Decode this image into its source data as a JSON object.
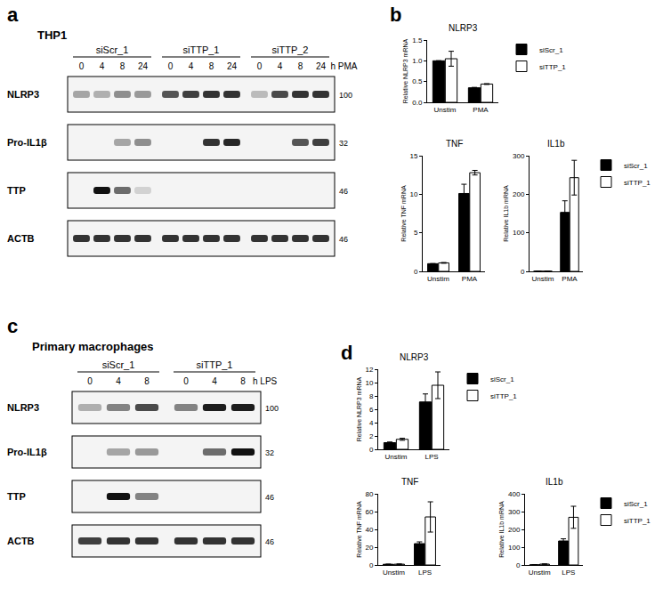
{
  "panel_labels": [
    "a",
    "b",
    "c",
    "d"
  ],
  "blots": [
    {
      "title": "THP1",
      "groups": [
        "siScr_1",
        "siTTP_1",
        "siTTP_2"
      ],
      "lanes": [
        "0",
        "4",
        "8",
        "24"
      ],
      "time_unit": "h PMA",
      "rows": [
        {
          "label": "NLRP3",
          "mw": 100,
          "intensities": [
            0.35,
            0.3,
            0.45,
            0.4,
            0.7,
            0.8,
            0.85,
            0.85,
            0.25,
            0.75,
            0.85,
            0.85
          ]
        },
        {
          "label": "Pro-IL1β",
          "mw": 32,
          "intensities": [
            0,
            0,
            0.35,
            0.45,
            0,
            0,
            0.85,
            0.9,
            0,
            0,
            0.7,
            0.8
          ]
        },
        {
          "label": "TTP",
          "mw": 46,
          "intensities": [
            0,
            1.0,
            0.6,
            0.15,
            0,
            0,
            0,
            0,
            0,
            0,
            0,
            0
          ]
        },
        {
          "label": "ACTB",
          "mw": 46,
          "intensities": [
            0.85,
            0.85,
            0.85,
            0.85,
            0.85,
            0.85,
            0.85,
            0.85,
            0.85,
            0.85,
            0.85,
            0.85
          ]
        }
      ]
    },
    {
      "title": "Primary macrophages",
      "groups": [
        "siScr_1",
        "siTTP_1"
      ],
      "lanes": [
        "0",
        "4",
        "8"
      ],
      "time_unit": "h LPS",
      "rows": [
        {
          "label": "NLRP3",
          "mw": 100,
          "intensities": [
            0.3,
            0.5,
            0.75,
            0.5,
            0.95,
            0.95
          ]
        },
        {
          "label": "Pro-IL1β",
          "mw": 32,
          "intensities": [
            0,
            0.35,
            0.4,
            0,
            0.6,
            1.0
          ]
        },
        {
          "label": "TTP",
          "mw": 46,
          "intensities": [
            0,
            1.0,
            0.5,
            0,
            0,
            0
          ]
        },
        {
          "label": "ACTB",
          "mw": 46,
          "intensities": [
            0.8,
            0.85,
            0.85,
            0.85,
            0.85,
            0.85
          ]
        }
      ]
    }
  ],
  "chart_data": [
    {
      "type": "bar",
      "title": "NLRP3",
      "y_label": "Relative NLRP3 mRNA",
      "categories": [
        "Unstim",
        "PMA"
      ],
      "series": [
        {
          "name": "siScr_1",
          "color": "#000000",
          "values": [
            1.0,
            0.35
          ],
          "errors": [
            0.0,
            0.01
          ]
        },
        {
          "name": "siTTP_1",
          "color": "#ffffff",
          "values": [
            1.05,
            0.44
          ],
          "errors": [
            0.18,
            0.01
          ]
        }
      ],
      "ylim": [
        0,
        1.5
      ],
      "yticks": [
        {
          "value": 0,
          "label": "0.0"
        },
        {
          "value": 0.5,
          "label": "0.5"
        },
        {
          "value": 1,
          "label": "1.0"
        },
        {
          "value": 1.5,
          "label": "1.5"
        }
      ],
      "legend": "right"
    },
    {
      "type": "bar",
      "title": "TNF",
      "y_label": "Relative TNF mRNA",
      "categories": [
        "Unstim",
        "PMA"
      ],
      "series": [
        {
          "name": "siScr_1",
          "color": "#000000",
          "values": [
            1.0,
            10.1
          ],
          "errors": [
            0.0,
            1.2
          ]
        },
        {
          "name": "siTTP_1",
          "color": "#ffffff",
          "values": [
            1.1,
            12.8
          ],
          "errors": [
            0.05,
            0.3
          ]
        }
      ],
      "ylim": [
        0,
        15
      ],
      "yticks": [
        0,
        5,
        10,
        15
      ]
    },
    {
      "type": "bar",
      "title": "IL1b",
      "y_label": "Relative IL1b mRNA",
      "categories": [
        "Unstim",
        "PMA"
      ],
      "series": [
        {
          "name": "siScr_1",
          "color": "#000000",
          "values": [
            0.5,
            153
          ],
          "errors": [
            0.0,
            30
          ]
        },
        {
          "name": "siTTP_1",
          "color": "#ffffff",
          "values": [
            0.6,
            243
          ],
          "errors": [
            0.0,
            45
          ]
        }
      ],
      "ylim": [
        0,
        300
      ],
      "yticks": [
        0,
        100,
        200,
        300
      ],
      "legend": "right"
    },
    {
      "type": "bar",
      "title": "NLRP3",
      "y_label": "Relative NLRP3 mRNA",
      "categories": [
        "Unstim",
        "LPS"
      ],
      "series": [
        {
          "name": "siScr_1",
          "color": "#000000",
          "values": [
            1.0,
            7.1
          ],
          "errors": [
            0.1,
            1.2
          ]
        },
        {
          "name": "siTTP_1",
          "color": "#ffffff",
          "values": [
            1.5,
            9.6
          ],
          "errors": [
            0.15,
            2.0
          ]
        }
      ],
      "ylim": [
        0,
        12
      ],
      "yticks": [
        0,
        2,
        4,
        6,
        8,
        10,
        12
      ],
      "legend": "right"
    },
    {
      "type": "bar",
      "title": "TNF",
      "y_label": "Relative TNF mRNA",
      "categories": [
        "Unstim",
        "LPS"
      ],
      "series": [
        {
          "name": "siScr_1",
          "color": "#000000",
          "values": [
            0.8,
            24
          ],
          "errors": [
            0.2,
            2
          ]
        },
        {
          "name": "siTTP_1",
          "color": "#ffffff",
          "values": [
            0.9,
            54
          ],
          "errors": [
            0.3,
            17
          ]
        }
      ],
      "ylim": [
        0,
        80
      ],
      "yticks": [
        0,
        20,
        40,
        60,
        80
      ]
    },
    {
      "type": "bar",
      "title": "IL1b",
      "y_label": "Relative IL1b mRNA",
      "categories": [
        "Unstim",
        "LPS"
      ],
      "series": [
        {
          "name": "siScr_1",
          "color": "#000000",
          "values": [
            1,
            135
          ],
          "errors": [
            0.5,
            12
          ]
        },
        {
          "name": "siTTP_1",
          "color": "#ffffff",
          "values": [
            5,
            268
          ],
          "errors": [
            1,
            62
          ]
        }
      ],
      "ylim": [
        0,
        400
      ],
      "yticks": [
        0,
        100,
        200,
        300,
        400
      ],
      "legend": "right"
    }
  ]
}
